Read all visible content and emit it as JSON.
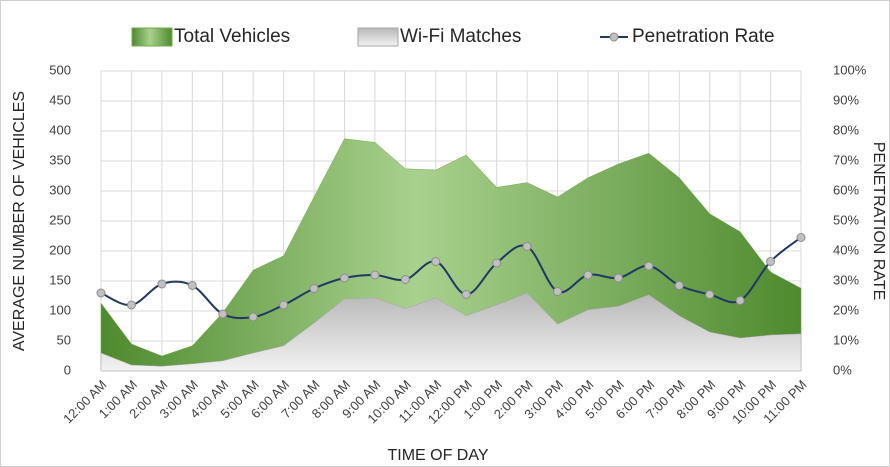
{
  "chart_data": {
    "type": "area-line",
    "x_label": "TIME OF DAY",
    "y_label": "AVERAGE NUMBER OF VEHICLES",
    "y2_label": "PENETRATION RATE",
    "categories": [
      "12:00 AM",
      "1:00 AM",
      "2:00 AM",
      "3:00 AM",
      "4:00 AM",
      "5:00 AM",
      "6:00 AM",
      "7:00 AM",
      "8:00 AM",
      "9:00 AM",
      "10:00 AM",
      "11:00 AM",
      "12:00 PM",
      "1:00 PM",
      "2:00 PM",
      "3:00 PM",
      "4:00 PM",
      "5:00 PM",
      "6:00 PM",
      "7:00 PM",
      "8:00 PM",
      "9:00 PM",
      "10:00 PM",
      "11:00 PM"
    ],
    "series": [
      {
        "name": "Total Vehicles",
        "color": "#70ad47",
        "kind": "area",
        "values": [
          113,
          45,
          25,
          42,
          97,
          168,
          192,
          290,
          387,
          381,
          337,
          335,
          360,
          306,
          314,
          290,
          322,
          345,
          363,
          322,
          262,
          232,
          165,
          138
        ]
      },
      {
        "name": "Wi-Fi Matches",
        "color": "#a6a6a6",
        "kind": "area",
        "values": [
          30,
          10,
          8,
          12,
          17,
          30,
          42,
          80,
          120,
          122,
          104,
          122,
          92,
          110,
          130,
          78,
          102,
          108,
          127,
          92,
          65,
          55,
          60,
          62
        ]
      },
      {
        "name": "Penetration Rate",
        "color": "#1f3864",
        "kind": "line",
        "axis": "y2",
        "values": [
          26,
          22,
          29,
          28.5,
          19,
          18,
          22,
          27.5,
          31,
          32,
          30.5,
          36.5,
          25.5,
          36,
          41.5,
          26.5,
          32,
          31,
          35,
          28.5,
          25.5,
          23.5,
          36.5,
          44.5
        ]
      }
    ],
    "ylim": [
      0,
      500
    ],
    "yticks": [
      0,
      50,
      100,
      150,
      200,
      250,
      300,
      350,
      400,
      450,
      500
    ],
    "y2lim": [
      0,
      100
    ],
    "y2ticks": [
      {
        "value": 0,
        "label": "0%"
      },
      {
        "value": 10,
        "label": "10%"
      },
      {
        "value": 20,
        "label": "20%"
      },
      {
        "value": 30,
        "label": "30%"
      },
      {
        "value": 40,
        "label": "40%"
      },
      {
        "value": 50,
        "label": "50%"
      },
      {
        "value": 60,
        "label": "60%"
      },
      {
        "value": 70,
        "label": "70%"
      },
      {
        "value": 80,
        "label": "80%"
      },
      {
        "value": 90,
        "label": "90%"
      },
      {
        "value": 100,
        "label": "100%"
      }
    ],
    "grid": true,
    "legend": "top"
  }
}
